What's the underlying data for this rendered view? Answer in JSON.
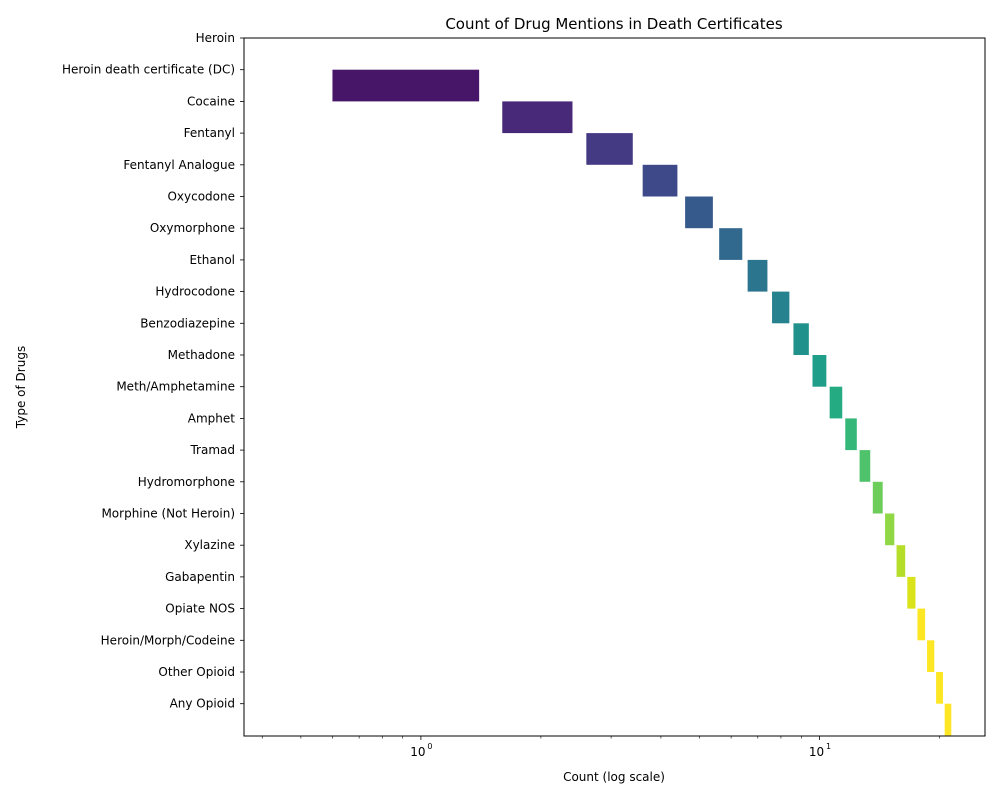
{
  "chart_data": {
    "type": "bar",
    "orientation": "horizontal",
    "title": "Count of Drug Mentions in Death Certificates",
    "xlabel": "Count (log scale)",
    "ylabel": "Type of Drugs",
    "x_scale": "log",
    "xlim": [
      0.36,
      26
    ],
    "x_ticks": [
      {
        "value": 1,
        "label": "10",
        "exp": "0"
      },
      {
        "value": 10,
        "label": "10",
        "exp": "1"
      }
    ],
    "categories": [
      "Heroin",
      "Heroin death certificate (DC)",
      "Cocaine",
      "Fentanyl",
      "Fentanyl Analogue",
      "Oxycodone",
      "Oxymorphone",
      "Ethanol",
      "Hydrocodone",
      "Benzodiazepine",
      "Methadone",
      "Meth/Amphetamine",
      "Amphet",
      "Tramad",
      "Hydromorphone",
      "Morphine (Not Heroin)",
      "Xylazine",
      "Gabapentin",
      "Opiate NOS",
      "Heroin/Morph/Codeine",
      "Other Opioid",
      "Any Opioid"
    ],
    "values": [
      0,
      1,
      2,
      3,
      4,
      5,
      6,
      7,
      8,
      9,
      10,
      11,
      12,
      13,
      14,
      15,
      16,
      17,
      18,
      19,
      20,
      21
    ],
    "colors": [
      "#440154",
      "#481668",
      "#482878",
      "#443983",
      "#3e4989",
      "#375a8c",
      "#31688e",
      "#2b758e",
      "#26828e",
      "#21918c",
      "#1f9e89",
      "#25ab82",
      "#35b779",
      "#4ec36b",
      "#6ccd5a",
      "#8fd744",
      "#b5de2b",
      "#dae319",
      "#fde725",
      "#fde725",
      "#fde725",
      "#fde725"
    ],
    "grid": false,
    "legend": "none"
  }
}
